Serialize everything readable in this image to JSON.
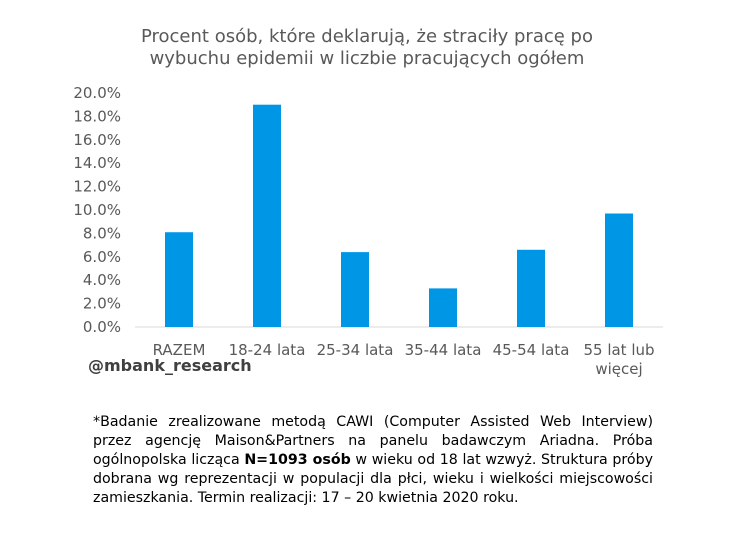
{
  "chart_data": {
    "type": "bar",
    "title_lines": [
      "Procent osób, które deklarują, że straciły pracę po",
      "wybuchu epidemii w liczbie pracujących ogółem"
    ],
    "categories": [
      [
        "RAZEM"
      ],
      [
        "18-24 lata"
      ],
      [
        "25-34 lata"
      ],
      [
        "35-44 lata"
      ],
      [
        "45-54 lata"
      ],
      [
        "55 lat lub",
        "więcej"
      ]
    ],
    "values": [
      8.1,
      19.0,
      6.4,
      3.3,
      6.6,
      9.7
    ],
    "y_ticks": [
      "0.0%",
      "2.0%",
      "4.0%",
      "6.0%",
      "8.0%",
      "10.0%",
      "12.0%",
      "14.0%",
      "16.0%",
      "18.0%",
      "20.0%"
    ],
    "ylim": [
      0,
      20
    ],
    "grid": false,
    "bar_color": "#0096e6",
    "axis_color": "#d9d9d9"
  },
  "watermark": "@mbank_research",
  "footnote": {
    "before": "*Badanie zrealizowane metodą CAWI (Computer Assisted Web Interview) przez agencję Maison&Partners na panelu badawczym Ariadna. Próba ogólnopolska licząca ",
    "bold": "N=1093 osób",
    "after": " w wieku od 18 lat wzwyż. Struktura próby dobrana wg reprezentacji w populacji dla płci, wieku i wielkości miejscowości zamieszkania. Termin realizacji: 17 – 20 kwietnia 2020 roku."
  }
}
